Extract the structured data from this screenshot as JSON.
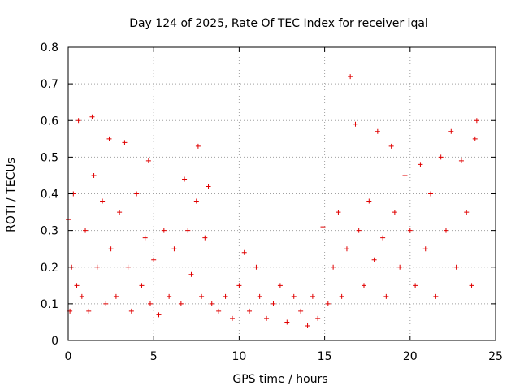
{
  "chart_data": {
    "type": "scatter",
    "title": "Day 124 of 2025, Rate Of TEC Index for receiver iqal",
    "xlabel": "GPS time / hours",
    "ylabel": "ROTI / TECUs",
    "xlim": [
      0,
      25
    ],
    "ylim": [
      0,
      0.8
    ],
    "xticks": [
      "0",
      "5",
      "10",
      "15",
      "20",
      "25"
    ],
    "yticks": [
      "0",
      "0.1",
      "0.2",
      "0.3",
      "0.4",
      "0.5",
      "0.6",
      "0.7",
      "0.8"
    ],
    "grid": true,
    "marker": "+",
    "color": "#e00000",
    "series": [
      {
        "x": [
          0.0,
          0.1,
          0.2,
          0.3,
          0.5,
          0.6,
          0.8,
          1.0,
          1.2,
          1.4,
          1.5,
          1.7,
          2.0,
          2.2,
          2.4,
          2.5,
          2.8,
          3.0,
          3.3,
          3.5,
          3.7,
          4.0,
          4.3,
          4.5,
          4.7,
          4.8,
          5.0,
          5.3,
          5.6,
          5.9,
          6.2,
          6.6,
          6.8,
          7.0,
          7.2,
          7.5,
          7.6,
          7.8,
          8.0,
          8.2,
          8.4,
          8.8,
          9.2,
          9.6,
          10.0,
          10.3,
          10.6,
          11.0,
          11.2,
          11.6,
          12.0,
          12.4,
          12.8,
          13.2,
          13.6,
          14.0,
          14.3,
          14.6,
          14.9,
          15.2,
          15.5,
          15.8,
          16.0,
          16.3,
          16.5,
          16.8,
          17.0,
          17.3,
          17.6,
          17.9,
          18.1,
          18.4,
          18.6,
          18.9,
          19.1,
          19.4,
          19.7,
          20.0,
          20.3,
          20.6,
          20.9,
          21.2,
          21.5,
          21.8,
          22.1,
          22.4,
          22.7,
          23.0,
          23.3,
          23.6,
          23.8,
          23.9
        ],
        "y": [
          0.33,
          0.08,
          0.2,
          0.4,
          0.15,
          0.6,
          0.12,
          0.3,
          0.08,
          0.61,
          0.45,
          0.2,
          0.38,
          0.1,
          0.55,
          0.25,
          0.12,
          0.35,
          0.54,
          0.2,
          0.08,
          0.4,
          0.15,
          0.28,
          0.49,
          0.1,
          0.22,
          0.07,
          0.3,
          0.12,
          0.25,
          0.1,
          0.44,
          0.3,
          0.18,
          0.38,
          0.53,
          0.12,
          0.28,
          0.42,
          0.1,
          0.08,
          0.12,
          0.06,
          0.15,
          0.24,
          0.08,
          0.2,
          0.12,
          0.06,
          0.1,
          0.15,
          0.05,
          0.12,
          0.08,
          0.04,
          0.12,
          0.06,
          0.31,
          0.1,
          0.2,
          0.35,
          0.12,
          0.25,
          0.72,
          0.59,
          0.3,
          0.15,
          0.38,
          0.22,
          0.57,
          0.28,
          0.12,
          0.53,
          0.35,
          0.2,
          0.45,
          0.3,
          0.15,
          0.48,
          0.25,
          0.4,
          0.12,
          0.5,
          0.3,
          0.57,
          0.2,
          0.49,
          0.35,
          0.15,
          0.55,
          0.6
        ]
      }
    ]
  }
}
